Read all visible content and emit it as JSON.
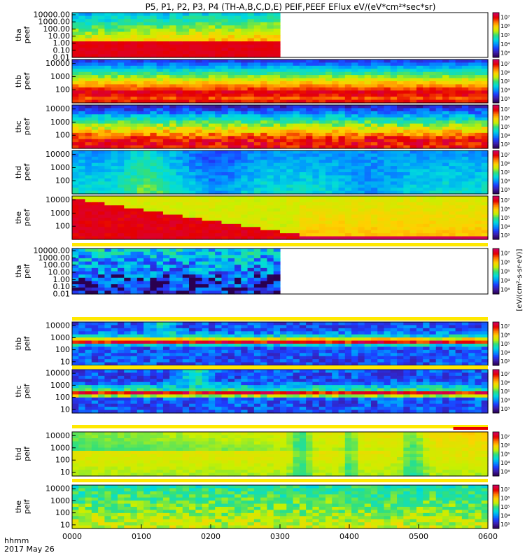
{
  "title": "P5, P1, P2, P3, P4 (TH-A,B,C,D,E) PEIF,PEEF EFlux eV/(eV*cm²*sec*sr)",
  "x_axis": {
    "label_line1": "hhmm",
    "label_line2": "2017 May 26",
    "ticks": [
      "0000",
      "0100",
      "0200",
      "0300",
      "0400",
      "0500",
      "0600"
    ]
  },
  "colorbar": {
    "title": "[eV/(cm²-s-sr-eV)]",
    "colors": [
      "#2a0050",
      "#3c1aa6",
      "#1e3cff",
      "#0096ff",
      "#00dcdc",
      "#33e07a",
      "#c8f000",
      "#ffd000",
      "#ff7a00",
      "#e60000",
      "#d2005a"
    ]
  },
  "chart_data": {
    "type": "heatmap",
    "title": "P5, P1, P2, P3, P4 (TH-A,B,C,D,E) PEIF,PEEF EFlux eV/(eV*cm²*sec*sr)",
    "x_unit": "hhmm",
    "x_range": [
      "0000",
      "0600"
    ],
    "date": "2017 May 26",
    "y_scale": "log",
    "panels": [
      {
        "name": "tha peef",
        "y_ticks": [
          "0.01",
          "0.10",
          "1.00",
          "10.00",
          "100.00",
          "1000.00",
          "10000.00"
        ],
        "y_range": [
          0.01,
          20000
        ],
        "cbar_ticks": [
          "10³",
          "10⁴",
          "10⁵",
          "10⁶",
          "10⁷"
        ],
        "data_end": "0300",
        "pattern": "tha-peef"
      },
      {
        "name": "thb peef",
        "y_ticks": [
          "100",
          "1000",
          "10000"
        ],
        "y_range": [
          10,
          20000
        ],
        "cbar_ticks": [
          "10³",
          "10⁴",
          "10⁵",
          "10⁶",
          "10⁷"
        ],
        "data_end": "0600",
        "pattern": "thb-peef"
      },
      {
        "name": "thc peef",
        "y_ticks": [
          "100",
          "1000",
          "10000"
        ],
        "y_range": [
          10,
          20000
        ],
        "cbar_ticks": [
          "10³",
          "10⁴",
          "10⁵",
          "10⁶",
          "10⁷"
        ],
        "data_end": "0600",
        "pattern": "thc-peef"
      },
      {
        "name": "thd peef",
        "y_ticks": [
          "100",
          "1000",
          "10000"
        ],
        "y_range": [
          10,
          20000
        ],
        "cbar_ticks": [
          "10³",
          "10⁴",
          "10⁵",
          "10⁶",
          "10⁷"
        ],
        "data_end": "0600",
        "pattern": "thd-peef"
      },
      {
        "name": "the peef",
        "y_ticks": [
          "100",
          "1000",
          "10000"
        ],
        "y_range": [
          10,
          20000
        ],
        "cbar_ticks": [
          "10³",
          "10⁴",
          "10⁵",
          "10⁶",
          "10⁷"
        ],
        "data_end": "0600",
        "pattern": "the-peef"
      },
      {
        "name": "tha peif",
        "y_ticks": [
          "0.01",
          "0.10",
          "1.00",
          "10.00",
          "100.00",
          "1000.00",
          "10000.00"
        ],
        "y_range": [
          0.01,
          20000
        ],
        "cbar_ticks": [
          "10³",
          "10⁴",
          "10⁵",
          "10⁶",
          "10⁷"
        ],
        "data_end": "0300",
        "pattern": "tha-peif"
      },
      {
        "name": "thb peif",
        "y_ticks": [
          "10",
          "100",
          "1000",
          "10000"
        ],
        "y_range": [
          5,
          20000
        ],
        "cbar_ticks": [
          "10³",
          "10⁴",
          "10⁵",
          "10⁶",
          "10⁷"
        ],
        "data_end": "0600",
        "pattern": "thb-peif"
      },
      {
        "name": "thc peif",
        "y_ticks": [
          "10",
          "100",
          "1000",
          "10000"
        ],
        "y_range": [
          5,
          20000
        ],
        "cbar_ticks": [
          "10³",
          "10⁴",
          "10⁵",
          "10⁶",
          "10⁷"
        ],
        "data_end": "0600",
        "pattern": "thc-peif"
      },
      {
        "name": "thd peif",
        "y_ticks": [
          "10",
          "100",
          "1000",
          "10000"
        ],
        "y_range": [
          5,
          20000
        ],
        "cbar_ticks": [
          "10³",
          "10⁴",
          "10⁵",
          "10⁶",
          "10⁷"
        ],
        "data_end": "0600",
        "pattern": "thd-peif"
      },
      {
        "name": "the peif",
        "y_ticks": [
          "10",
          "100",
          "1000",
          "10000"
        ],
        "y_range": [
          5,
          20000
        ],
        "cbar_ticks": [
          "10³",
          "10⁴",
          "10⁵",
          "10⁶",
          "10⁷"
        ],
        "data_end": "0600",
        "pattern": "the-peif"
      }
    ],
    "status_bars": [
      {
        "after_panel": "the peef",
        "color": "#ffe800"
      },
      {
        "after_panel": "tha peif",
        "color": "#ffe800"
      },
      {
        "after_panel": "thb peif",
        "color": "#ffe800"
      },
      {
        "after_panel": "thc peif",
        "color": "#ffe800",
        "flag_color": "#e60000",
        "flag_range": [
          "0530",
          "0600"
        ]
      },
      {
        "after_panel": "thd peif",
        "color": "#ffe800"
      }
    ]
  }
}
